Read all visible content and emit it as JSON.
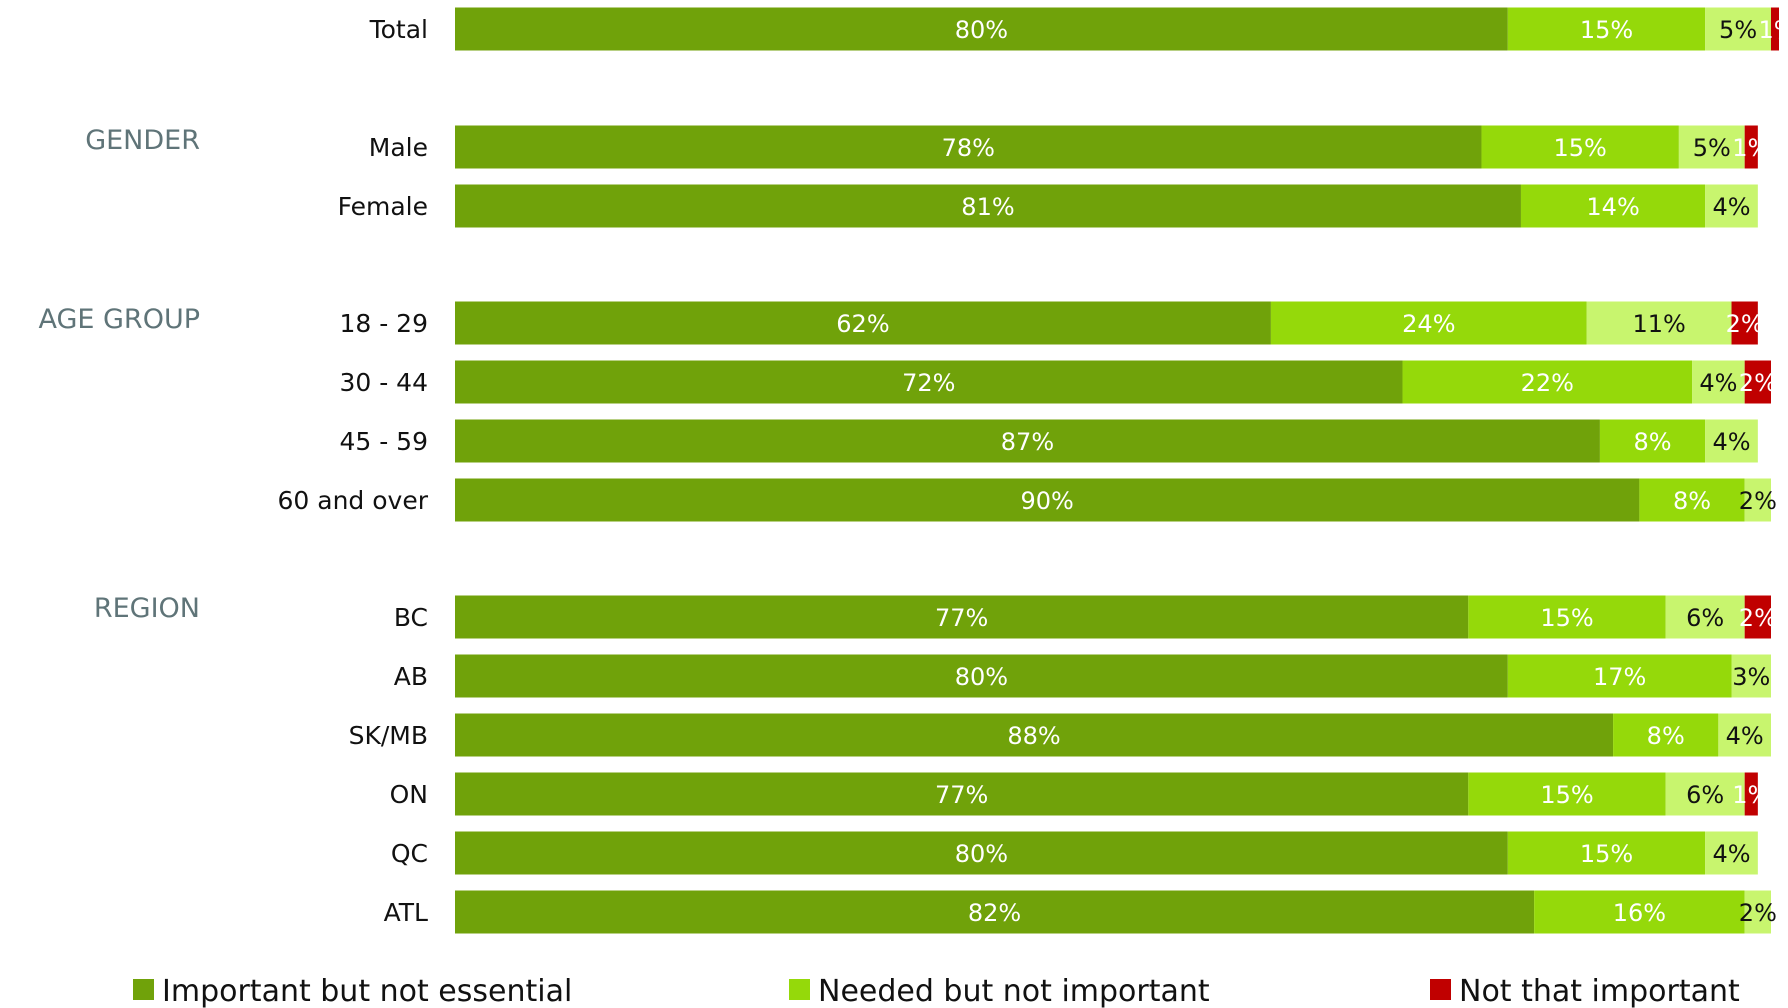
{
  "chart_data": {
    "type": "bar",
    "orientation": "horizontal",
    "stacked": true,
    "xlim": [
      0,
      100
    ],
    "groups": [
      {
        "name": "",
        "rows": [
          "Total"
        ]
      },
      {
        "name": "GENDER",
        "rows": [
          "Male",
          "Female"
        ]
      },
      {
        "name": "AGE GROUP",
        "rows": [
          "18 - 29",
          "30 - 44",
          "45 - 59",
          "60 and over"
        ]
      },
      {
        "name": "REGION",
        "rows": [
          "BC",
          "AB",
          "SK/MB",
          "ON",
          "QC",
          "ATL"
        ]
      }
    ],
    "categories": [
      "Total",
      "Male",
      "Female",
      "18 - 29",
      "30 - 44",
      "45 - 59",
      "60 and over",
      "BC",
      "AB",
      "SK/MB",
      "ON",
      "QC",
      "ATL"
    ],
    "series": [
      {
        "name": "Important but not essential",
        "color": "#70a20a",
        "values": [
          80,
          78,
          81,
          62,
          72,
          87,
          90,
          77,
          80,
          88,
          77,
          80,
          82
        ],
        "labels": [
          "80%",
          "78%",
          "81%",
          "62%",
          "72%",
          "87%",
          "90%",
          "77%",
          "80%",
          "88%",
          "77%",
          "80%",
          "82%"
        ]
      },
      {
        "name": "Needed but not important",
        "color": "#95d90a",
        "values": [
          15,
          15,
          14,
          24,
          22,
          8,
          8,
          15,
          17,
          8,
          15,
          15,
          16
        ],
        "labels": [
          "15%",
          "15%",
          "14%",
          "24%",
          "22%",
          "8%",
          "8%",
          "15%",
          "17%",
          "8%",
          "15%",
          "15%",
          "16%"
        ]
      },
      {
        "name": "",
        "color": "#c8f56e",
        "values": [
          5,
          5,
          4,
          11,
          4,
          4,
          2,
          6,
          3,
          4,
          6,
          4,
          2
        ],
        "labels": [
          "5%",
          "5%",
          "4%",
          "11%",
          "4%",
          "4%",
          "2%",
          "6%",
          "3%",
          "4%",
          "6%",
          "4%",
          "2%"
        ]
      },
      {
        "name": "Not that important",
        "color": "#c00000",
        "values": [
          1,
          1,
          0,
          2,
          2,
          0,
          0,
          2,
          0,
          0,
          1,
          0,
          0
        ],
        "labels": [
          "1%",
          "1%",
          "",
          "2%",
          "2%",
          "",
          "",
          "2%",
          "",
          "",
          "1%",
          "",
          ""
        ]
      }
    ],
    "label_colors": [
      "#ffffff",
      "#ffffff",
      "#111111",
      "#ffffff"
    ],
    "legend_position": "bottom",
    "grid": false
  }
}
